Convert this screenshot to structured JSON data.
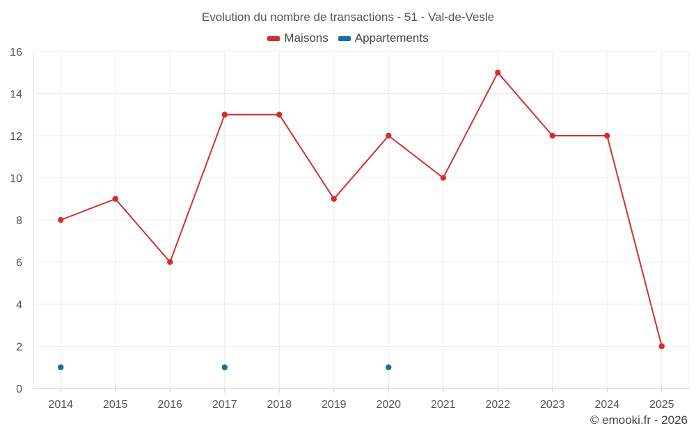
{
  "chart_data": {
    "type": "line",
    "title": "Evolution du nombre de transactions - 51 - Val-de-Vesle",
    "categories": [
      "2014",
      "2015",
      "2016",
      "2017",
      "2018",
      "2019",
      "2020",
      "2021",
      "2022",
      "2023",
      "2024",
      "2025"
    ],
    "ylim": [
      0,
      16
    ],
    "yticks": [
      0,
      2,
      4,
      6,
      8,
      10,
      12,
      14,
      16
    ],
    "grid": true,
    "legend_position": "top",
    "series": [
      {
        "name": "Maisons",
        "color": "#d32f2f",
        "style": "line-markers",
        "values": [
          8,
          9,
          6,
          13,
          13,
          9,
          12,
          10,
          15,
          12,
          12,
          2
        ]
      },
      {
        "name": "Appartements",
        "color": "#1a6fa0",
        "style": "markers",
        "values": [
          1,
          null,
          null,
          1,
          null,
          null,
          1,
          null,
          null,
          null,
          null,
          null
        ]
      }
    ]
  },
  "credit": "© emooki.fr - 2026"
}
